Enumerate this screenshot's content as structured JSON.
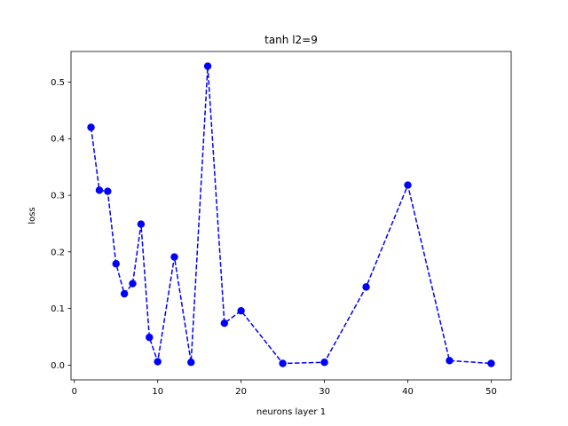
{
  "chart_data": {
    "type": "line",
    "title": "tanh l2=9",
    "xlabel": "neurons layer 1",
    "ylabel": "loss",
    "xlim": [
      -0.4,
      52.4
    ],
    "ylim": [
      -0.026,
      0.554
    ],
    "xticks": [
      0,
      10,
      20,
      30,
      40,
      50
    ],
    "yticks": [
      0.0,
      0.1,
      0.2,
      0.3,
      0.4,
      0.5
    ],
    "ytick_labels": [
      "0.0",
      "0.1",
      "0.2",
      "0.3",
      "0.4",
      "0.5"
    ],
    "grid": false,
    "series": [
      {
        "color": "#0000ff",
        "line_style": "dashed",
        "marker": "circle",
        "x": [
          2,
          3,
          4,
          5,
          6,
          7,
          8,
          9,
          10,
          12,
          14,
          16,
          18,
          20,
          25,
          30,
          35,
          40,
          45,
          50
        ],
        "y": [
          0.42,
          0.309,
          0.307,
          0.179,
          0.126,
          0.144,
          0.249,
          0.049,
          0.006,
          0.191,
          0.005,
          0.528,
          0.074,
          0.096,
          0.003,
          0.005,
          0.138,
          0.318,
          0.008,
          0.003
        ]
      }
    ]
  }
}
